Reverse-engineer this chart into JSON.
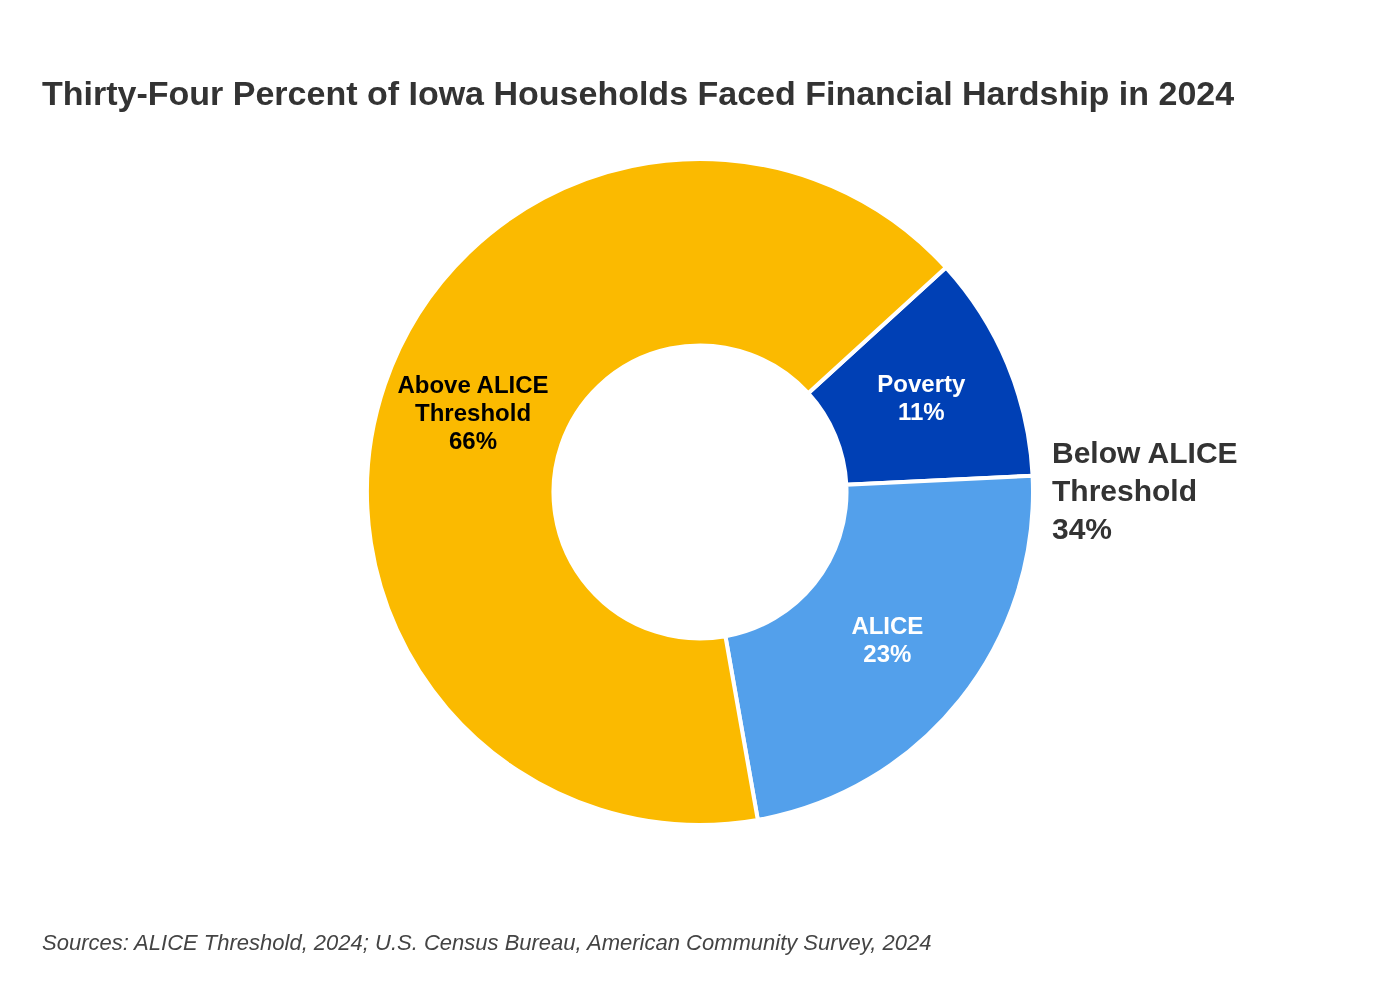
{
  "chart_data": {
    "type": "donut",
    "title": "Thirty-Four Percent of Iowa Households Faced Financial Hardship in 2024",
    "categories": [
      "Poverty",
      "ALICE",
      "Above ALICE Threshold"
    ],
    "values": [
      11,
      23,
      66
    ],
    "colors": [
      "#0040b5",
      "#53a0eb",
      "#fbba00"
    ],
    "value_labels": [
      "11%",
      "23%",
      "66%"
    ],
    "legend": false,
    "annotations": [
      "Below ALICE Threshold 34%",
      "Sources: ALICE Threshold, 2024; U.S. Census Bureau, American Community Survey, 2024"
    ]
  }
}
